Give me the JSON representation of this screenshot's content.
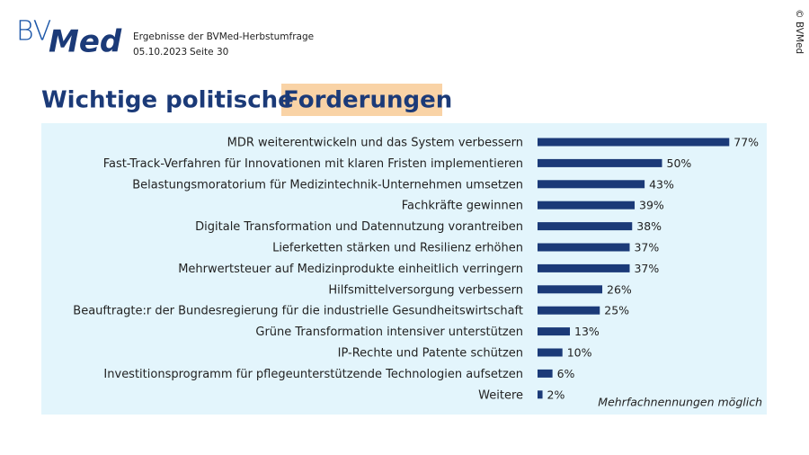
{
  "header": {
    "logo_bv": "BV",
    "logo_med": "Med",
    "subtitle": "Ergebnisse der BVMed-Herbstumfrage",
    "date": "05.10.2023",
    "page": "Seite 30",
    "copyright": "© BVMed"
  },
  "chart_data": {
    "type": "bar",
    "orientation": "horizontal",
    "title": "Wichtige politische",
    "title_highlight": "Forderungen",
    "categories": [
      "MDR weiterentwickeln und das System verbessern",
      "Fast-Track-Verfahren für Innovationen mit klaren Fristen implementieren",
      "Belastungsmoratorium für Medizintechnik-Unternehmen umsetzen",
      "Fachkräfte gewinnen",
      "Digitale Transformation und Datennutzung vorantreiben",
      "Lieferketten stärken und Resilienz erhöhen",
      "Mehrwertsteuer auf Medizinprodukte einheitlich verringern",
      "Hilfsmittelversorgung verbessern",
      "Beauftragte:r der Bundesregierung für die industrielle Gesundheitswirtschaft",
      "Grüne Transformation intensiver unterstützen",
      "IP-Rechte und Patente schützen",
      "Investitionsprogramm für pflegeunterstützende Technologien aufsetzen",
      "Weitere"
    ],
    "values": [
      77,
      50,
      43,
      39,
      38,
      37,
      37,
      26,
      25,
      13,
      10,
      6,
      2
    ],
    "value_labels": [
      "77%",
      "50%",
      "43%",
      "39%",
      "38%",
      "37%",
      "37%",
      "26%",
      "25%",
      "13%",
      "10%",
      "6%",
      "2%"
    ],
    "color": "#1b3a78",
    "note": "Mehrfachnennungen möglich"
  }
}
